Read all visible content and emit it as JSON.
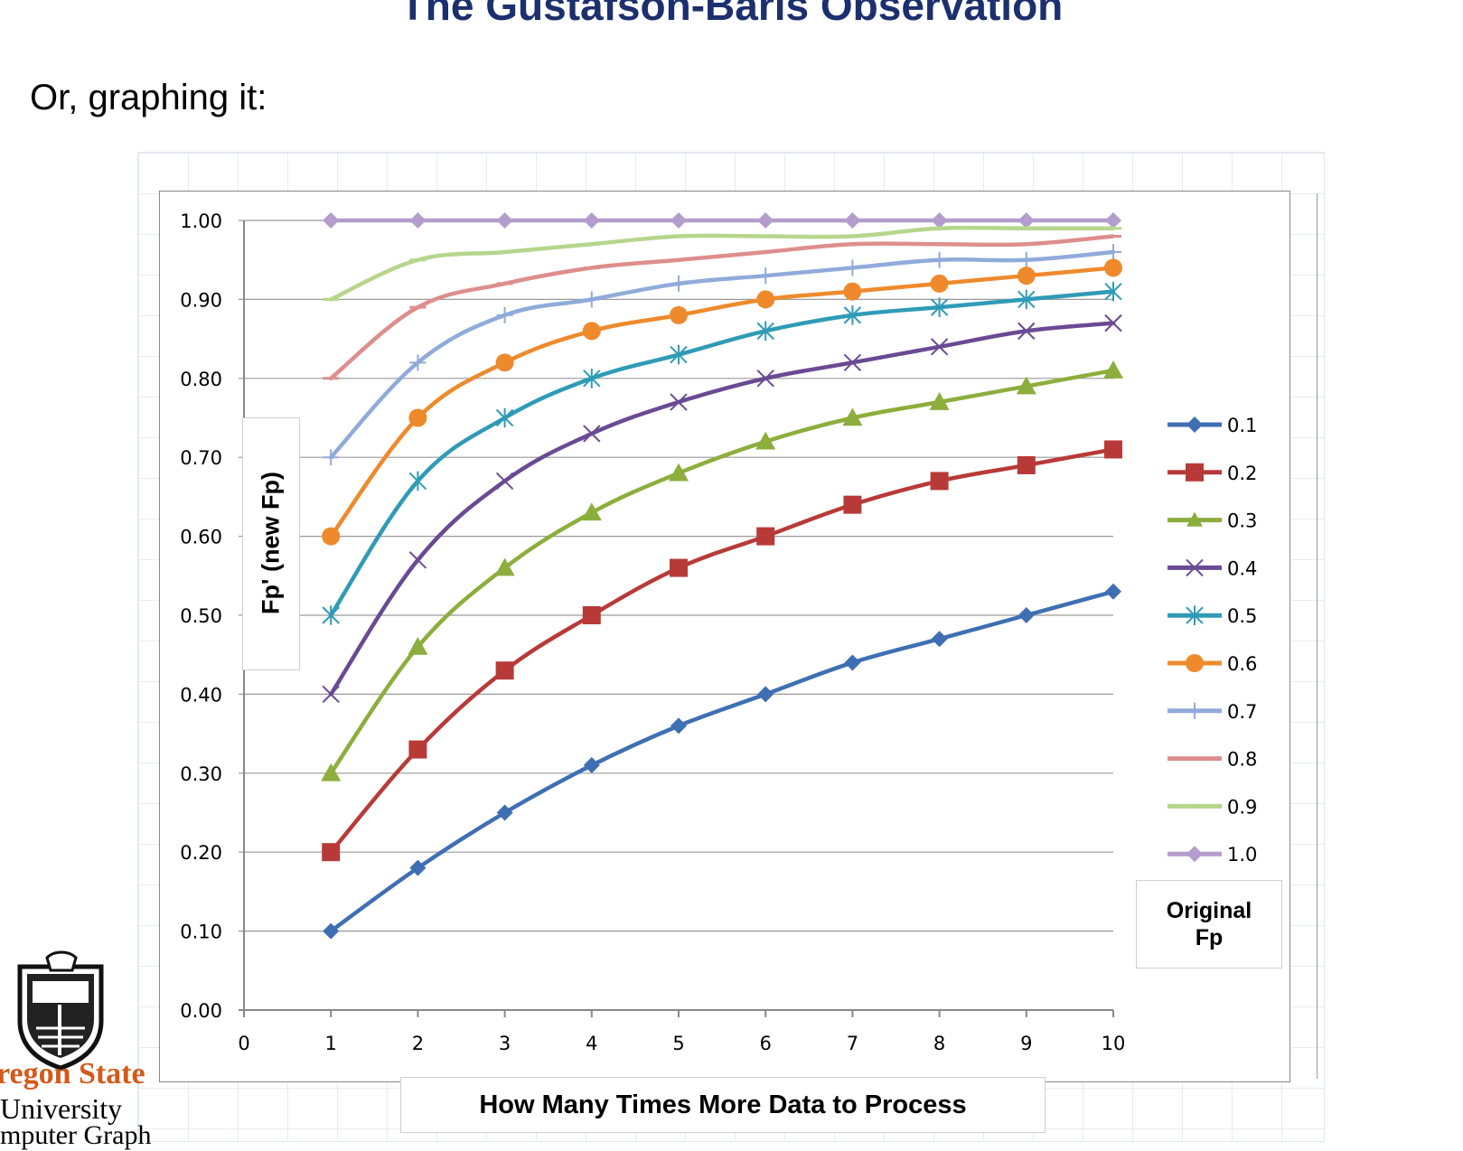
{
  "slide": {
    "title": "The Gustafson-Baris Observation",
    "subtitle": "Or, graphing it:"
  },
  "logo": {
    "line1": "regon State",
    "line2": "University",
    "line3": "mputer Graph"
  },
  "chart_data": {
    "type": "line",
    "title": "",
    "xlabel": "How Many Times More Data to Process",
    "ylabel": "Fp' (new Fp)",
    "xlim": [
      0,
      10
    ],
    "ylim": [
      0.0,
      1.0
    ],
    "x_ticks": [
      "0",
      "1",
      "2",
      "3",
      "4",
      "5",
      "6",
      "7",
      "8",
      "9",
      "10"
    ],
    "y_ticks": [
      "0.00",
      "0.10",
      "0.20",
      "0.30",
      "0.40",
      "0.50",
      "0.60",
      "0.70",
      "0.80",
      "0.90",
      "1.00"
    ],
    "grid": "horizontal",
    "legend_title": [
      "Original",
      "Fp"
    ],
    "legend_position": "right",
    "x": [
      1,
      2,
      3,
      4,
      5,
      6,
      7,
      8,
      9,
      10
    ],
    "series": [
      {
        "name": "0.1",
        "color": "#3f6fb3",
        "marker": "diamond",
        "values": [
          0.1,
          0.18,
          0.25,
          0.31,
          0.36,
          0.4,
          0.44,
          0.47,
          0.5,
          0.53
        ]
      },
      {
        "name": "0.2",
        "color": "#b83a38",
        "marker": "square",
        "values": [
          0.2,
          0.33,
          0.43,
          0.5,
          0.56,
          0.6,
          0.64,
          0.67,
          0.69,
          0.71
        ]
      },
      {
        "name": "0.3",
        "color": "#8cae3c",
        "marker": "triangle",
        "values": [
          0.3,
          0.46,
          0.56,
          0.63,
          0.68,
          0.72,
          0.75,
          0.77,
          0.79,
          0.81
        ]
      },
      {
        "name": "0.4",
        "color": "#6a4a93",
        "marker": "x",
        "values": [
          0.4,
          0.57,
          0.67,
          0.73,
          0.77,
          0.8,
          0.82,
          0.84,
          0.86,
          0.87
        ]
      },
      {
        "name": "0.5",
        "color": "#2f9bb6",
        "marker": "star",
        "values": [
          0.5,
          0.67,
          0.75,
          0.8,
          0.83,
          0.86,
          0.88,
          0.89,
          0.9,
          0.91
        ]
      },
      {
        "name": "0.6",
        "color": "#ee8a2c",
        "marker": "circle",
        "values": [
          0.6,
          0.75,
          0.82,
          0.86,
          0.88,
          0.9,
          0.91,
          0.92,
          0.93,
          0.94
        ]
      },
      {
        "name": "0.7",
        "color": "#8fabda",
        "marker": "plus",
        "values": [
          0.7,
          0.82,
          0.88,
          0.9,
          0.92,
          0.93,
          0.94,
          0.95,
          0.95,
          0.96
        ]
      },
      {
        "name": "0.8",
        "color": "#dd8e8c",
        "marker": "dash",
        "values": [
          0.8,
          0.89,
          0.92,
          0.94,
          0.95,
          0.96,
          0.97,
          0.97,
          0.97,
          0.98
        ]
      },
      {
        "name": "0.9",
        "color": "#b5d68c",
        "marker": "dash",
        "values": [
          0.9,
          0.95,
          0.96,
          0.97,
          0.98,
          0.98,
          0.98,
          0.99,
          0.99,
          0.99
        ]
      },
      {
        "name": "1.0",
        "color": "#b49ccd",
        "marker": "diamond",
        "values": [
          1.0,
          1.0,
          1.0,
          1.0,
          1.0,
          1.0,
          1.0,
          1.0,
          1.0,
          1.0
        ]
      }
    ]
  }
}
